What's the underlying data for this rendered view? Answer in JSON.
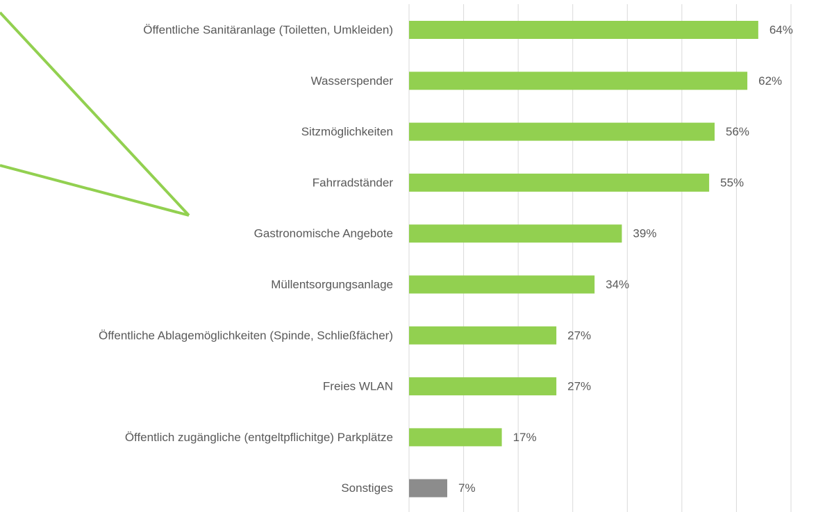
{
  "chart_data": {
    "type": "bar",
    "orientation": "horizontal",
    "categories": [
      "Öffentliche Sanitäranlage (Toiletten, Umkleiden)",
      "Wasserspender",
      "Sitzmöglichkeiten",
      "Fahrradständer",
      "Gastronomische Angebote",
      "Müllentsorgungsanlage",
      "Öffentliche Ablagemöglichkeiten (Spinde, Schließfächer)",
      "Freies WLAN",
      "Öffentlich zugängliche (entgeltpflichitge) Parkplätze",
      "Sonstiges"
    ],
    "values": [
      64,
      62,
      56,
      55,
      39,
      34,
      27,
      27,
      17,
      7
    ],
    "value_labels": [
      "64%",
      "62%",
      "56%",
      "55%",
      "39%",
      "34%",
      "27%",
      "27%",
      "17%",
      "7%"
    ],
    "colors": [
      "#92d050",
      "#92d050",
      "#92d050",
      "#92d050",
      "#92d050",
      "#92d050",
      "#92d050",
      "#92d050",
      "#92d050",
      "#8c8c8c"
    ],
    "xlim": [
      0,
      70
    ],
    "xticks": [
      0,
      10,
      20,
      30,
      40,
      50,
      60,
      70
    ],
    "grid": true
  }
}
